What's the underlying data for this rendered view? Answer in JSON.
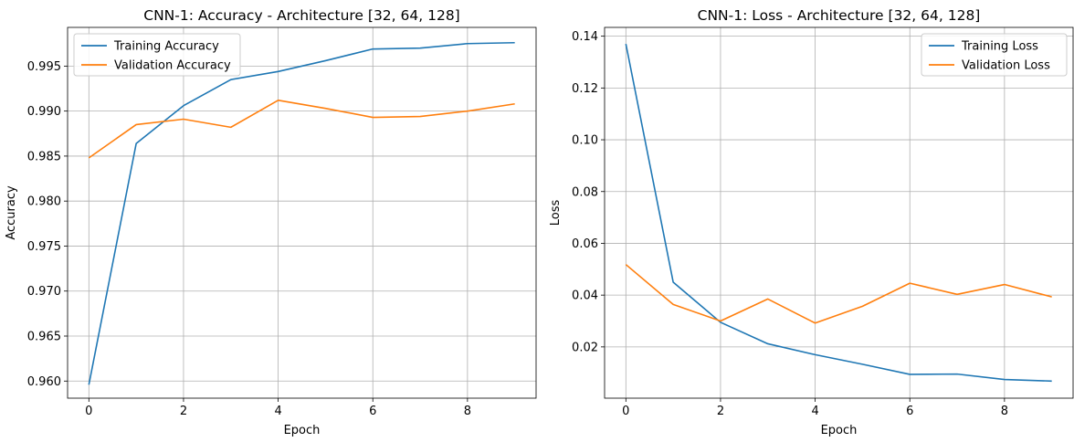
{
  "colors": {
    "training": "#1f77b4",
    "validation": "#ff7f0e",
    "grid": "#b0b0b0",
    "axes": "#000000"
  },
  "chart_data": [
    {
      "type": "line",
      "title": "CNN-1: Accuracy - Architecture [32, 64, 128]",
      "xlabel": "Epoch",
      "ylabel": "Accuracy",
      "x": [
        0,
        1,
        2,
        3,
        4,
        5,
        6,
        7,
        8,
        9
      ],
      "xlim": [
        -0.45,
        9.45
      ],
      "ylim": [
        0.9581,
        0.9993
      ],
      "xticks": [
        0,
        2,
        4,
        6,
        8
      ],
      "yticks": [
        0.96,
        0.965,
        0.97,
        0.975,
        0.98,
        0.985,
        0.99,
        0.995
      ],
      "ytick_labels": [
        "0.960",
        "0.965",
        "0.970",
        "0.975",
        "0.980",
        "0.985",
        "0.990",
        "0.995"
      ],
      "grid": true,
      "legend": "top-left",
      "series": [
        {
          "name": "Training Accuracy",
          "color": "#1f77b4",
          "values": [
            0.9596,
            0.9864,
            0.9906,
            0.9935,
            0.9944,
            0.9956,
            0.9969,
            0.997,
            0.9975,
            0.9976
          ]
        },
        {
          "name": "Validation Accuracy",
          "color": "#ff7f0e",
          "values": [
            0.9848,
            0.9885,
            0.9891,
            0.9882,
            0.9912,
            0.9903,
            0.9893,
            0.9894,
            0.99,
            0.9908
          ]
        }
      ]
    },
    {
      "type": "line",
      "title": "CNN-1: Loss - Architecture [32, 64, 128]",
      "xlabel": "Epoch",
      "ylabel": "Loss",
      "x": [
        0,
        1,
        2,
        3,
        4,
        5,
        6,
        7,
        8,
        9
      ],
      "xlim": [
        -0.45,
        9.45
      ],
      "ylim": [
        0.0002,
        0.1434
      ],
      "xticks": [
        0,
        2,
        4,
        6,
        8
      ],
      "yticks": [
        0.02,
        0.04,
        0.06,
        0.08,
        0.1,
        0.12,
        0.14
      ],
      "ytick_labels": [
        "0.02",
        "0.04",
        "0.06",
        "0.08",
        "0.10",
        "0.12",
        "0.14"
      ],
      "grid": true,
      "legend": "top-right",
      "series": [
        {
          "name": "Training Loss",
          "color": "#1f77b4",
          "values": [
            0.137,
            0.045,
            0.0295,
            0.0212,
            0.017,
            0.0133,
            0.0094,
            0.0095,
            0.0074,
            0.0068
          ]
        },
        {
          "name": "Validation Loss",
          "color": "#ff7f0e",
          "values": [
            0.0518,
            0.0364,
            0.03,
            0.0385,
            0.0292,
            0.0357,
            0.0446,
            0.0403,
            0.0441,
            0.0393
          ]
        }
      ]
    }
  ]
}
